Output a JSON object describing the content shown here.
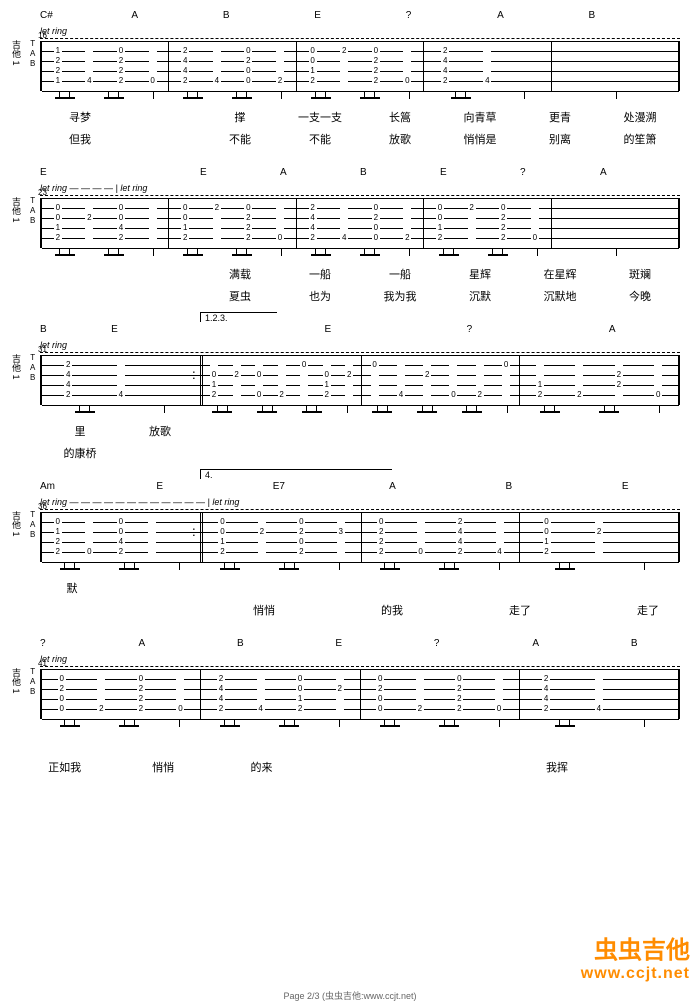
{
  "systems": [
    {
      "measureStart": "16",
      "letring": "let ring",
      "instrument": "吉他 1",
      "chords": [
        "C#",
        "A",
        "B",
        "E",
        "?",
        "A",
        "B"
      ],
      "bars": [
        {
          "cols": [
            [
              "1",
              "2",
              "2",
              "1"
            ],
            [
              "",
              "",
              "",
              "4"
            ],
            [
              "0",
              "2",
              "2",
              "2"
            ],
            [
              "",
              "",
              "",
              "0"
            ]
          ]
        },
        {
          "cols": [
            [
              "2",
              "4",
              "4",
              "2"
            ],
            [
              "",
              "",
              "",
              "4"
            ],
            [
              "0",
              "2",
              "0",
              "0"
            ],
            [
              "",
              "",
              "",
              "2"
            ]
          ]
        },
        {
          "cols": [
            [
              "0",
              "0",
              "1",
              "2"
            ],
            [
              "2",
              "",
              "",
              ""
            ],
            [
              "0",
              "2",
              "2",
              "2"
            ],
            [
              "",
              "",
              "",
              "0"
            ]
          ]
        },
        {
          "cols": [
            [
              "2",
              "4",
              "4",
              "2"
            ],
            [
              "",
              "",
              "",
              "4"
            ],
            []
          ]
        },
        {
          "cols": [
            []
          ]
        }
      ],
      "lyrics1": [
        "寻梦",
        "",
        "撑",
        "一支一支",
        "长篙",
        "向青草",
        "更青",
        "处漫溯"
      ],
      "lyrics2": [
        "但我",
        "",
        "不能",
        "不能",
        "放歌",
        "悄悄是",
        "别离",
        "的笙箫"
      ]
    },
    {
      "measureStart": "23",
      "letring": "let ring — — — — |  let ring",
      "instrument": "吉他 1",
      "chords": [
        "E",
        "",
        "E",
        "A",
        "B",
        "E",
        "?",
        "A"
      ],
      "bars": [
        {
          "cols": [
            [
              "0",
              "0",
              "1",
              "2"
            ],
            [
              "",
              "2",
              "",
              ""
            ],
            [
              "0",
              "0",
              "4",
              "2"
            ],
            [
              "",
              "",
              "",
              ""
            ]
          ]
        },
        {
          "cols": [
            [
              "0",
              "0",
              "1",
              "2"
            ],
            [
              "2",
              "",
              "",
              ""
            ],
            [
              "0",
              "2",
              "2",
              "2"
            ],
            [
              "",
              "",
              "",
              "0"
            ]
          ]
        },
        {
          "cols": [
            [
              "2",
              "4",
              "4",
              "2"
            ],
            [
              "",
              "",
              "",
              "4"
            ],
            [
              "0",
              "2",
              "0",
              "0"
            ],
            [
              "",
              "",
              "",
              "2"
            ]
          ]
        },
        {
          "cols": [
            [
              "0",
              "0",
              "1",
              "2"
            ],
            [
              "2",
              "",
              "",
              ""
            ],
            [
              "0",
              "2",
              "2",
              "2"
            ],
            [
              "",
              "",
              "",
              "0"
            ]
          ]
        },
        {
          "cols": [
            []
          ]
        }
      ],
      "lyrics1": [
        "",
        "",
        "满载",
        "一船",
        "一船",
        "星辉",
        "在星辉",
        "斑斓"
      ],
      "lyrics2": [
        "",
        "",
        "夏虫",
        "也为",
        "我为我",
        "沉默",
        "沉默地",
        "今晚"
      ]
    },
    {
      "measureStart": "31",
      "letring": "let ring",
      "instrument": "吉他 1",
      "volta": {
        "label": "1.2.3.",
        "startBar": 1,
        "widthPct": 12
      },
      "chords": [
        "B",
        "E",
        "",
        "",
        "E",
        "",
        "?",
        "",
        "A"
      ],
      "bars": [
        {
          "cols": [
            [
              "2",
              "4",
              "4",
              "2"
            ],
            [
              "",
              "",
              "",
              "4"
            ],
            []
          ],
          "repeatEnd": true
        },
        {
          "cols": [
            [
              "",
              "0",
              "1",
              "2"
            ],
            [
              "",
              "2",
              "",
              ""
            ],
            [
              "",
              "0",
              "",
              "0"
            ],
            [
              "",
              "",
              "",
              "2"
            ],
            [
              "0",
              "",
              "",
              ""
            ],
            [
              "",
              "0",
              "1",
              "2"
            ],
            [
              "",
              "2",
              "",
              ""
            ]
          ]
        },
        {
          "cols": [
            [
              "0",
              "",
              "",
              ""
            ],
            [
              "",
              "",
              "",
              "4"
            ],
            [
              "",
              "2",
              "",
              ""
            ],
            [
              "",
              "",
              "",
              "0"
            ],
            [
              "",
              "",
              "",
              "2"
            ],
            [
              "0",
              "",
              "",
              ""
            ]
          ]
        },
        {
          "cols": [
            [
              "",
              "",
              "1",
              "2"
            ],
            [
              "",
              "",
              "",
              "2"
            ],
            [
              "",
              "2",
              "2",
              ""
            ],
            [
              "",
              "",
              "",
              "0"
            ]
          ]
        }
      ],
      "lyrics1": [
        "里",
        "放歌",
        "",
        "",
        "",
        "",
        "",
        ""
      ],
      "lyrics2": [
        "的康桥",
        "",
        "",
        "",
        "",
        "",
        "",
        ""
      ]
    },
    {
      "measureStart": "36",
      "letring": "let ring — — — — — — — — — — — — |  let ring",
      "instrument": "吉他 1",
      "volta": {
        "label": "4.",
        "startBar": 1,
        "widthPct": 30
      },
      "chords": [
        "Am",
        "",
        "E",
        "",
        "E7",
        "",
        "A",
        "",
        "B",
        "",
        "E"
      ],
      "bars": [
        {
          "cols": [
            [
              "0",
              "1",
              "2",
              "2"
            ],
            [
              "",
              "",
              "",
              "0"
            ],
            [
              "0",
              "0",
              "4",
              "2"
            ],
            [
              "",
              "",
              "",
              ""
            ],
            []
          ],
          "repeatEnd": true
        },
        {
          "cols": [
            [
              "0",
              "0",
              "1",
              "2"
            ],
            [
              "",
              "2",
              "",
              ""
            ],
            [
              "0",
              "2",
              "0",
              "2"
            ],
            [
              "",
              "3",
              "",
              ""
            ]
          ]
        },
        {
          "cols": [
            [
              "0",
              "2",
              "2",
              "2"
            ],
            [
              "",
              "",
              "",
              "0"
            ],
            [
              "2",
              "4",
              "4",
              "2"
            ],
            [
              "",
              "",
              "",
              "4"
            ]
          ]
        },
        {
          "cols": [
            [
              "0",
              "0",
              "1",
              "2"
            ],
            [
              "",
              "2",
              "",
              ""
            ],
            []
          ]
        }
      ],
      "lyrics1": [
        "默",
        "",
        "",
        "",
        "",
        "",
        "",
        "",
        "",
        ""
      ],
      "lyrics2": [
        "",
        "",
        "",
        "悄悄",
        "",
        "的我",
        "",
        "走了",
        "",
        "走了"
      ]
    },
    {
      "measureStart": "41",
      "letring": "                                                         let ring",
      "instrument": "吉他 1",
      "chords": [
        "?",
        "",
        "A",
        "",
        "B",
        "",
        "E",
        "",
        "?",
        "",
        "A",
        "",
        "B"
      ],
      "bars": [
        {
          "cols": [
            [
              "0",
              "2",
              "0",
              "0"
            ],
            [
              "",
              "",
              "",
              "2"
            ],
            [
              "0",
              "2",
              "2",
              "2"
            ],
            [
              "",
              "",
              "",
              "0"
            ]
          ]
        },
        {
          "cols": [
            [
              "2",
              "4",
              "4",
              "2"
            ],
            [
              "",
              "",
              "",
              "4"
            ],
            [
              "0",
              "0",
              "1",
              "2"
            ],
            [
              "",
              "2",
              "",
              ""
            ]
          ]
        },
        {
          "cols": [
            [
              "0",
              "2",
              "0",
              "0"
            ],
            [
              "",
              "",
              "",
              "2"
            ],
            [
              "0",
              "2",
              "2",
              "2"
            ],
            [
              "",
              "",
              "",
              "0"
            ]
          ]
        },
        {
          "cols": [
            [
              "2",
              "4",
              "4",
              "2"
            ],
            [
              "",
              "",
              "",
              "4"
            ],
            []
          ]
        }
      ],
      "lyrics1": [
        "",
        "",
        "",
        "",
        "",
        "",
        "",
        "",
        "",
        "",
        "",
        "",
        ""
      ],
      "lyrics2": [
        "正如我",
        "",
        "悄悄",
        "",
        "的来",
        "",
        "",
        "",
        "",
        "",
        "我挥",
        "",
        ""
      ]
    }
  ],
  "watermark": {
    "brand": "虫虫吉他",
    "url": "www.ccjt.net"
  },
  "footer": "Page 2/3 (虫虫吉他:www.ccjt.net)"
}
